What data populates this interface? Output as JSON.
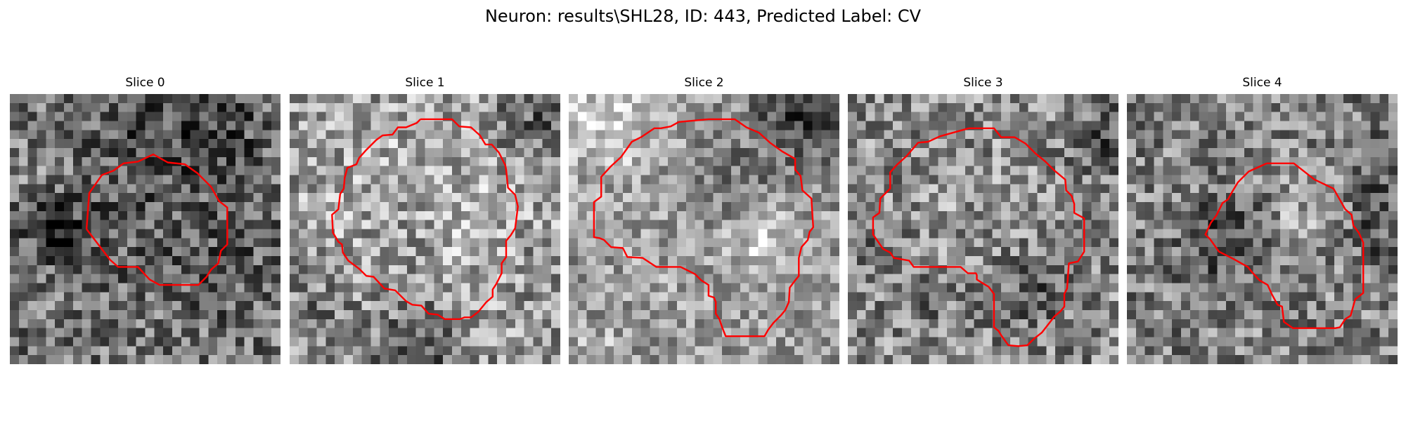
{
  "figure": {
    "title": "Neuron: results\\SHL28, ID: 443, Predicted Label: CV",
    "contour_color": "#ff0000",
    "colormap": "gray",
    "grid_cells": 30
  },
  "panels": [
    {
      "title": "Slice 0",
      "seed": 11,
      "base": 118,
      "contrast": 150,
      "contour": [
        [
          8.5,
          15
        ],
        [
          8.8,
          11
        ],
        [
          10.2,
          9
        ],
        [
          11.5,
          8.5
        ],
        [
          12.6,
          7.7
        ],
        [
          14.2,
          7.5
        ],
        [
          15.9,
          6.7
        ],
        [
          17.5,
          7.6
        ],
        [
          19.4,
          7.8
        ],
        [
          20.8,
          8.8
        ],
        [
          22.3,
          10.3
        ],
        [
          23.2,
          11.9
        ],
        [
          24.1,
          12.6
        ],
        [
          24.1,
          16.7
        ],
        [
          23.4,
          17.4
        ],
        [
          23.1,
          18.8
        ],
        [
          22.3,
          19.5
        ],
        [
          21.8,
          20.3
        ],
        [
          20.9,
          21.2
        ],
        [
          16.6,
          21.2
        ],
        [
          15.5,
          20.6
        ],
        [
          14.2,
          19.2
        ],
        [
          12,
          19.2
        ],
        [
          11.1,
          18.4
        ],
        [
          8.5,
          15
        ]
      ],
      "blobs": [
        [
          16,
          15,
          7,
          -18
        ],
        [
          5,
          15,
          3,
          -50
        ],
        [
          23,
          4,
          4,
          -45
        ],
        [
          14,
          4,
          5,
          -28
        ],
        [
          26,
          20,
          4,
          -22
        ],
        [
          3,
          9,
          2,
          30
        ],
        [
          6,
          16,
          1,
          -70
        ]
      ]
    },
    {
      "title": "Slice 1",
      "seed": 23,
      "base": 150,
      "contrast": 150,
      "contour": [
        [
          14.5,
          2.8
        ],
        [
          18,
          2.8
        ],
        [
          18.8,
          3.6
        ],
        [
          20.1,
          3.7
        ],
        [
          21.1,
          4.6
        ],
        [
          21.7,
          5.6
        ],
        [
          22.4,
          5.6
        ],
        [
          23.2,
          6.5
        ],
        [
          23.9,
          7.9
        ],
        [
          24,
          8.4
        ],
        [
          24.2,
          10.4
        ],
        [
          25,
          11.2
        ],
        [
          25.3,
          12.5
        ],
        [
          25,
          14.9
        ],
        [
          24.5,
          15.7
        ],
        [
          24,
          16.3
        ],
        [
          24,
          18.1
        ],
        [
          23.5,
          18.8
        ],
        [
          23.5,
          19.9
        ],
        [
          23.3,
          20.3
        ],
        [
          22.9,
          21.1
        ],
        [
          22.5,
          21.7
        ],
        [
          22.5,
          22.5
        ],
        [
          21.8,
          23.1
        ],
        [
          20.9,
          24.2
        ],
        [
          20.1,
          24.8
        ],
        [
          19.4,
          24.8
        ],
        [
          18.9,
          25
        ],
        [
          17.2,
          25
        ],
        [
          16.4,
          24.5
        ],
        [
          15.4,
          24.4
        ],
        [
          14.6,
          23.5
        ],
        [
          13.6,
          23.4
        ],
        [
          12.9,
          23
        ],
        [
          11.7,
          21.8
        ],
        [
          10.5,
          21.6
        ],
        [
          9.3,
          20.3
        ],
        [
          8.5,
          20.2
        ],
        [
          7.7,
          19.4
        ],
        [
          6.5,
          18.5
        ],
        [
          5.9,
          17.6
        ],
        [
          5.8,
          16.7
        ],
        [
          5.4,
          16.4
        ],
        [
          4.8,
          15.4
        ],
        [
          4.7,
          13.4
        ],
        [
          5.4,
          12.8
        ],
        [
          5.6,
          11.1
        ],
        [
          6,
          10.5
        ],
        [
          6.1,
          9.3
        ],
        [
          6.4,
          8.2
        ],
        [
          7.4,
          7.8
        ],
        [
          7.7,
          7.1
        ],
        [
          8.5,
          6.2
        ],
        [
          9.6,
          5.1
        ],
        [
          10.3,
          4.6
        ],
        [
          11.4,
          4.5
        ],
        [
          12,
          3.7
        ],
        [
          12.9,
          3.7
        ],
        [
          14.1,
          3.2
        ],
        [
          14.5,
          2.8
        ]
      ],
      "blobs": [
        [
          15,
          14,
          9,
          35
        ],
        [
          14,
          28,
          4,
          -70
        ],
        [
          27,
          3,
          3,
          -60
        ],
        [
          3,
          24,
          3,
          -40
        ],
        [
          13,
          15,
          4,
          -25
        ],
        [
          28,
          20,
          2,
          -30
        ]
      ]
    },
    {
      "title": "Slice 2",
      "seed": 37,
      "base": 150,
      "contrast": 120,
      "contour": [
        [
          15.5,
          2.8
        ],
        [
          18.4,
          2.8
        ],
        [
          19.7,
          3.7
        ],
        [
          21.1,
          4.3
        ],
        [
          22.3,
          5.4
        ],
        [
          23.7,
          6.4
        ],
        [
          25.1,
          7.2
        ],
        [
          25.1,
          8.4
        ],
        [
          25.7,
          9.1
        ],
        [
          25.9,
          10.7
        ],
        [
          26.9,
          11.6
        ],
        [
          27.1,
          14.8
        ],
        [
          26.7,
          15.3
        ],
        [
          26.5,
          16.2
        ],
        [
          25.8,
          17
        ],
        [
          25.5,
          18.2
        ],
        [
          25.5,
          20.2
        ],
        [
          25.1,
          20.7
        ],
        [
          24.5,
          21.5
        ],
        [
          24.4,
          23.1
        ],
        [
          24,
          24
        ],
        [
          23.5,
          24.6
        ],
        [
          22.7,
          25.4
        ],
        [
          22.1,
          26.2
        ],
        [
          21.7,
          26.9
        ],
        [
          17.4,
          26.9
        ],
        [
          17,
          25.9
        ],
        [
          16.7,
          25
        ],
        [
          16.3,
          24.4
        ],
        [
          16.3,
          23.1
        ],
        [
          16.1,
          22.6
        ],
        [
          15.5,
          22.4
        ],
        [
          15.5,
          21.2
        ],
        [
          14.7,
          20.7
        ],
        [
          14,
          20
        ],
        [
          13.4,
          19.7
        ],
        [
          12.4,
          19.2
        ],
        [
          9.7,
          19.2
        ],
        [
          8.2,
          18.2
        ],
        [
          6.5,
          18.1
        ],
        [
          6,
          17.1
        ],
        [
          4.7,
          17
        ],
        [
          3.9,
          16.2
        ],
        [
          3.4,
          16
        ],
        [
          2.8,
          15.9
        ],
        [
          2.8,
          12
        ],
        [
          3.6,
          11.4
        ],
        [
          3.6,
          9.2
        ],
        [
          4.7,
          8
        ],
        [
          5.8,
          7
        ],
        [
          7,
          5.3
        ],
        [
          8,
          4.8
        ],
        [
          9.5,
          3.8
        ],
        [
          10.2,
          3.8
        ],
        [
          11.3,
          3.6
        ],
        [
          12.2,
          3.1
        ],
        [
          15.5,
          2.8
        ]
      ],
      "blobs": [
        [
          26,
          2,
          4,
          -90
        ],
        [
          18,
          11,
          4,
          -45
        ],
        [
          21,
          16,
          3,
          55
        ],
        [
          4,
          3,
          4,
          60
        ],
        [
          3,
          29,
          2,
          40
        ],
        [
          14,
          14,
          8,
          15
        ]
      ]
    },
    {
      "title": "Slice 3",
      "seed": 53,
      "base": 135,
      "contrast": 150,
      "contour": [
        [
          13.4,
          3.8
        ],
        [
          16.2,
          3.8
        ],
        [
          17,
          4.8
        ],
        [
          18.5,
          4.8
        ],
        [
          19.7,
          5.5
        ],
        [
          20.8,
          6.6
        ],
        [
          21.9,
          7.5
        ],
        [
          22.9,
          8.5
        ],
        [
          24.1,
          9.5
        ],
        [
          24.2,
          10.7
        ],
        [
          24.8,
          11.3
        ],
        [
          25.1,
          12.2
        ],
        [
          25.1,
          13.2
        ],
        [
          26.2,
          13.8
        ],
        [
          26.2,
          17.5
        ],
        [
          25.5,
          18.6
        ],
        [
          24.5,
          18.8
        ],
        [
          24.3,
          21.6
        ],
        [
          24,
          22.2
        ],
        [
          24,
          23.6
        ],
        [
          23.6,
          24.1
        ],
        [
          22.9,
          24.7
        ],
        [
          21.5,
          26.5
        ],
        [
          20.6,
          27.2
        ],
        [
          19.9,
          27.9
        ],
        [
          18.9,
          28
        ],
        [
          17.8,
          27.9
        ],
        [
          17,
          26.8
        ],
        [
          16.7,
          26.3
        ],
        [
          16.2,
          25.9
        ],
        [
          16.2,
          22.2
        ],
        [
          15.6,
          21.4
        ],
        [
          15.1,
          21.1
        ],
        [
          14.3,
          20.6
        ],
        [
          14.3,
          20.1
        ],
        [
          14.2,
          19.9
        ],
        [
          13.3,
          19.9
        ],
        [
          12.5,
          19.2
        ],
        [
          7.3,
          19.2
        ],
        [
          6.8,
          18.5
        ],
        [
          5.1,
          18.2
        ],
        [
          4.7,
          17.6
        ],
        [
          3.9,
          17.2
        ],
        [
          2.8,
          15.6
        ],
        [
          2.8,
          13.7
        ],
        [
          3.5,
          13.2
        ],
        [
          3.6,
          11.6
        ],
        [
          4.1,
          11.1
        ],
        [
          4.7,
          10.5
        ],
        [
          4.7,
          8.7
        ],
        [
          5.5,
          7.8
        ],
        [
          6.5,
          6.9
        ],
        [
          7.8,
          5.4
        ],
        [
          8.9,
          5.3
        ],
        [
          10.2,
          4.7
        ],
        [
          13.4,
          3.8
        ]
      ],
      "blobs": [
        [
          20,
          22,
          3,
          -50
        ],
        [
          16,
          13,
          8,
          15
        ],
        [
          28,
          5,
          3,
          -50
        ],
        [
          3,
          16,
          2,
          -30
        ],
        [
          9,
          22,
          2,
          -40
        ]
      ]
    },
    {
      "title": "Slice 4",
      "seed": 71,
      "base": 128,
      "contrast": 150,
      "contour": [
        [
          15.5,
          7.7
        ],
        [
          18.5,
          7.7
        ],
        [
          20.8,
          9.5
        ],
        [
          22.9,
          10.5
        ],
        [
          24.2,
          12.8
        ],
        [
          24.9,
          13.4
        ],
        [
          25.1,
          14.6
        ],
        [
          25.7,
          15.4
        ],
        [
          26.2,
          16.5
        ],
        [
          26.2,
          22.1
        ],
        [
          25.3,
          22.8
        ],
        [
          24.8,
          24.6
        ],
        [
          24.2,
          25
        ],
        [
          23.6,
          25.9
        ],
        [
          23.1,
          26
        ],
        [
          18.4,
          26
        ],
        [
          17.4,
          25.3
        ],
        [
          17.2,
          23.6
        ],
        [
          16.7,
          23.4
        ],
        [
          16.1,
          22.3
        ],
        [
          15.6,
          21.2
        ],
        [
          14.7,
          20.7
        ],
        [
          13.8,
          19.7
        ],
        [
          13.4,
          19.2
        ],
        [
          11.8,
          18.3
        ],
        [
          10.2,
          17.5
        ],
        [
          9.2,
          16.1
        ],
        [
          8.7,
          15.6
        ],
        [
          9.3,
          14.3
        ],
        [
          9.9,
          13.5
        ],
        [
          10.6,
          12.1
        ],
        [
          11.2,
          11.7
        ],
        [
          11.7,
          10.8
        ],
        [
          12.3,
          9.8
        ],
        [
          13.5,
          8.6
        ],
        [
          15.5,
          7.7
        ]
      ],
      "blobs": [
        [
          12,
          15,
          3,
          -60
        ],
        [
          9,
          19,
          2,
          -40
        ],
        [
          19,
          11,
          4,
          30
        ],
        [
          28,
          15,
          3,
          -40
        ],
        [
          27,
          8,
          3,
          -30
        ],
        [
          18,
          18,
          4,
          20
        ]
      ]
    }
  ]
}
